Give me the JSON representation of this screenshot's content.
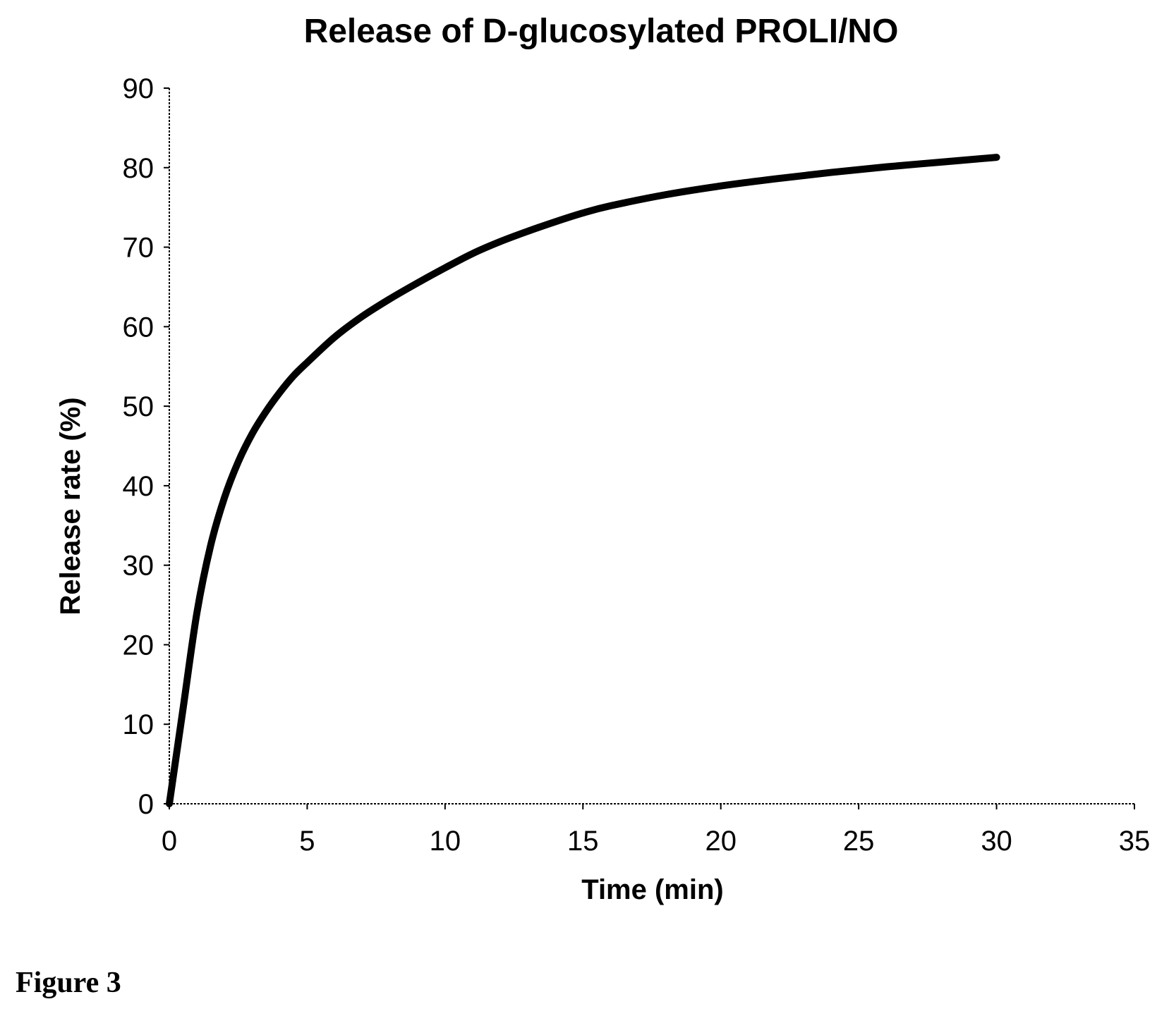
{
  "figure_caption": "Figure 3",
  "colors": {
    "line": "#000000",
    "axis": "#000000",
    "text": "#000000",
    "background": "#ffffff"
  },
  "chart_data": {
    "type": "line",
    "title": "Release of D-glucosylated PROLI/NO",
    "xlabel": "Time (min)",
    "ylabel": "Release rate (%)",
    "xlim": [
      0,
      35
    ],
    "ylim": [
      0,
      90
    ],
    "x_ticks": [
      0,
      5,
      10,
      15,
      20,
      25,
      30,
      35
    ],
    "y_ticks": [
      0,
      10,
      20,
      30,
      40,
      50,
      60,
      70,
      80,
      90
    ],
    "grid": false,
    "legend": "none",
    "series": [
      {
        "x": [
          0,
          0.5,
          1,
          1.5,
          2,
          2.5,
          3,
          3.5,
          4,
          4.5,
          5,
          6,
          7,
          8,
          9,
          10,
          11,
          12,
          13,
          14,
          15,
          16,
          18,
          20,
          22,
          24,
          26,
          28,
          30
        ],
        "y": [
          0,
          12,
          24,
          32.5,
          38.5,
          43,
          46.5,
          49.3,
          51.7,
          53.8,
          55.5,
          58.7,
          61.3,
          63.5,
          65.5,
          67.4,
          69.2,
          70.7,
          72,
          73.2,
          74.3,
          75.2,
          76.6,
          77.7,
          78.6,
          79.4,
          80.1,
          80.7,
          81.3
        ]
      }
    ]
  }
}
